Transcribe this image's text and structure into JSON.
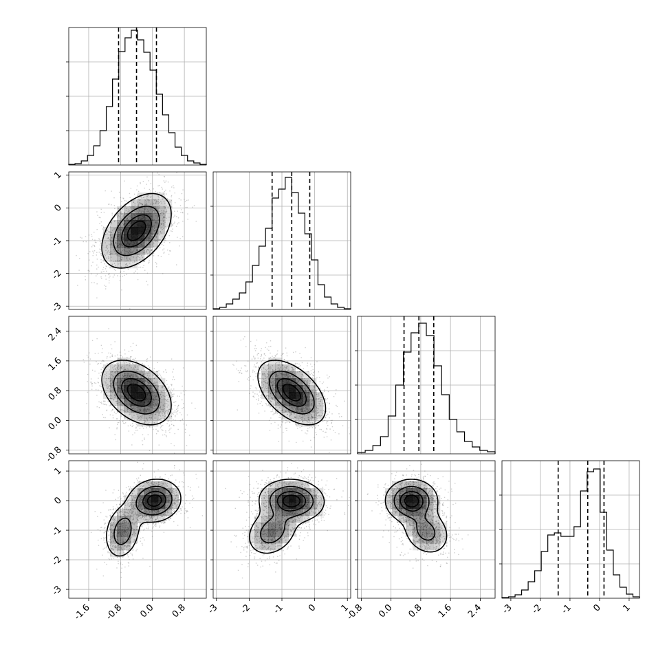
{
  "chart_data": {
    "type": "corner",
    "grid": true,
    "colors": {
      "line": "#000000",
      "density": "#000000",
      "points": "#6f6f6f",
      "grid": "#b0b0b0"
    },
    "parameters": [
      {
        "range": [
          -2.1,
          1.35
        ],
        "ticks": [
          "-1.6",
          "-0.8",
          "0.0",
          "0.8"
        ],
        "tick_values": [
          -1.6,
          -0.8,
          0.0,
          0.8
        ],
        "hist_max": 0.2,
        "hist": [
          0.001,
          0.002,
          0.006,
          0.014,
          0.028,
          0.05,
          0.085,
          0.125,
          0.165,
          0.185,
          0.196,
          0.182,
          0.164,
          0.138,
          0.103,
          0.073,
          0.047,
          0.026,
          0.014,
          0.006,
          0.003,
          0.001
        ],
        "quantiles": [
          -0.85,
          -0.4,
          0.1
        ]
      },
      {
        "range": [
          -3.1,
          1.1
        ],
        "ticks": [
          "-3",
          "-2",
          "-1",
          "0",
          "1"
        ],
        "tick_values": [
          -3,
          -2,
          -1,
          0,
          1
        ],
        "hist_max": 0.2,
        "hist": [
          0.001,
          0.003,
          0.008,
          0.015,
          0.024,
          0.04,
          0.064,
          0.092,
          0.118,
          0.162,
          0.175,
          0.192,
          0.17,
          0.14,
          0.11,
          0.072,
          0.036,
          0.018,
          0.008,
          0.003,
          0.001
        ],
        "quantiles": [
          -1.3,
          -0.7,
          -0.15
        ]
      },
      {
        "range": [
          -0.9,
          2.8
        ],
        "ticks": [
          "-0.8",
          "0.0",
          "0.8",
          "1.6",
          "2.4"
        ],
        "tick_values": [
          -0.8,
          0.0,
          0.8,
          1.6,
          2.4
        ],
        "hist_max": 0.2,
        "hist": [
          0.002,
          0.005,
          0.012,
          0.025,
          0.055,
          0.1,
          0.148,
          0.176,
          0.19,
          0.172,
          0.128,
          0.086,
          0.05,
          0.032,
          0.018,
          0.01,
          0.005,
          0.003
        ],
        "quantiles": [
          0.35,
          0.75,
          1.15
        ]
      },
      {
        "range": [
          -3.3,
          1.35
        ],
        "ticks": [
          "-3",
          "-2",
          "-1",
          "0",
          "1"
        ],
        "tick_values": [
          -3,
          -2,
          -1,
          0,
          1
        ],
        "hist_max": 0.2,
        "hist": [
          0.001,
          0.002,
          0.005,
          0.012,
          0.024,
          0.04,
          0.068,
          0.092,
          0.095,
          0.09,
          0.09,
          0.104,
          0.156,
          0.184,
          0.188,
          0.125,
          0.07,
          0.034,
          0.016,
          0.006,
          0.002
        ],
        "quantiles": [
          -1.4,
          -0.4,
          0.15
        ]
      }
    ],
    "pairs": [
      {
        "x": 0,
        "y": 1,
        "components": [
          {
            "w": 1.0,
            "mx": -0.4,
            "my": -0.7,
            "sx": 0.42,
            "sy": 0.55,
            "rho": 0.45
          }
        ]
      },
      {
        "x": 0,
        "y": 2,
        "components": [
          {
            "w": 1.0,
            "mx": -0.4,
            "my": 0.75,
            "sx": 0.42,
            "sy": 0.42,
            "rho": -0.4
          }
        ]
      },
      {
        "x": 1,
        "y": 2,
        "components": [
          {
            "w": 1.0,
            "mx": -0.7,
            "my": 0.75,
            "sx": 0.5,
            "sy": 0.42,
            "rho": -0.5
          }
        ]
      },
      {
        "x": 0,
        "y": 3,
        "components": [
          {
            "w": 0.65,
            "mx": 0.05,
            "my": 0.0,
            "sx": 0.32,
            "sy": 0.35,
            "rho": 0.1
          },
          {
            "w": 0.35,
            "mx": -0.75,
            "my": -1.05,
            "sx": 0.22,
            "sy": 0.45,
            "rho": 0.2
          }
        ]
      },
      {
        "x": 1,
        "y": 3,
        "components": [
          {
            "w": 0.65,
            "mx": -0.7,
            "my": 0.0,
            "sx": 0.48,
            "sy": 0.35,
            "rho": -0.05
          },
          {
            "w": 0.35,
            "mx": -1.3,
            "my": -1.05,
            "sx": 0.38,
            "sy": 0.4,
            "rho": 0.25
          }
        ]
      },
      {
        "x": 2,
        "y": 3,
        "components": [
          {
            "w": 0.65,
            "mx": 0.55,
            "my": 0.0,
            "sx": 0.34,
            "sy": 0.35,
            "rho": 0.0
          },
          {
            "w": 0.35,
            "mx": 0.95,
            "my": -1.05,
            "sx": 0.32,
            "sy": 0.4,
            "rho": -0.2
          }
        ]
      }
    ],
    "contour_levels": [
      0.118,
      0.393,
      0.675,
      0.865
    ]
  }
}
